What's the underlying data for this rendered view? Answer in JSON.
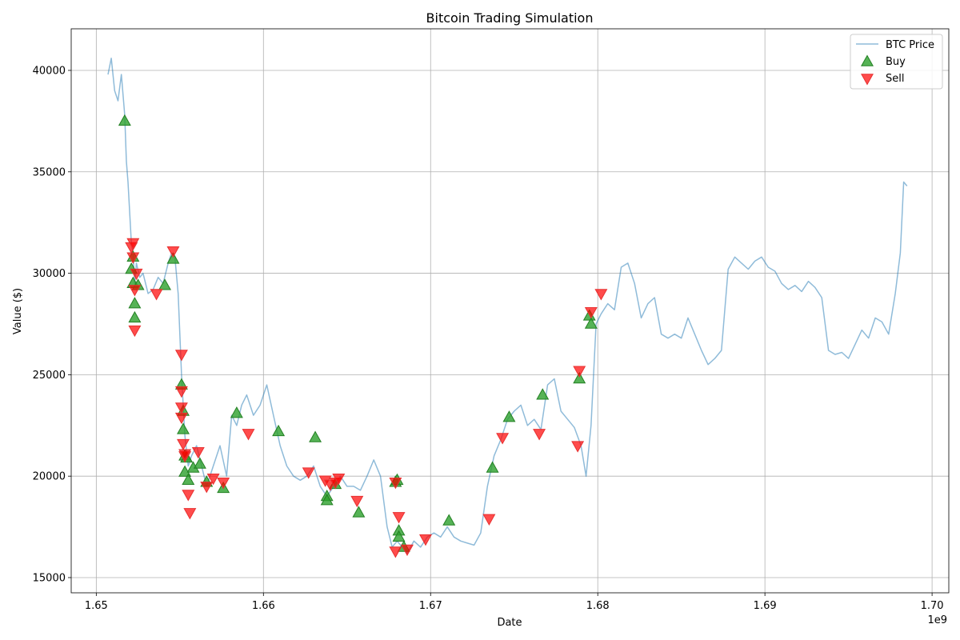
{
  "chart_data": {
    "type": "line",
    "title": "Bitcoin Trading Simulation",
    "xlabel": "Date",
    "ylabel": "Value ($)",
    "x_offset_label": "1e9",
    "xlim": [
      1.6485,
      1.701
    ],
    "ylim": [
      14250,
      42050
    ],
    "x_ticks": [
      1.65,
      1.66,
      1.67,
      1.68,
      1.69,
      1.7
    ],
    "x_tick_labels": [
      "1.65",
      "1.66",
      "1.67",
      "1.68",
      "1.69",
      "1.70"
    ],
    "y_ticks": [
      15000,
      20000,
      25000,
      30000,
      35000,
      40000
    ],
    "y_tick_labels": [
      "15000",
      "20000",
      "25000",
      "30000",
      "35000",
      "40000"
    ],
    "grid": true,
    "legend_position": "top-right",
    "colors": {
      "price": "#1f77b4",
      "buy": "#2ca02c",
      "sell": "#ff0000"
    },
    "series": [
      {
        "name": "BTC Price",
        "kind": "line",
        "x": [
          1.6507,
          1.6509,
          1.6511,
          1.6513,
          1.6515,
          1.6517,
          1.6518,
          1.6519,
          1.652,
          1.6521,
          1.6522,
          1.6523,
          1.6524,
          1.6526,
          1.6528,
          1.6531,
          1.6534,
          1.6537,
          1.654,
          1.6543,
          1.6545,
          1.6547,
          1.6549,
          1.6551,
          1.6553,
          1.6555,
          1.6557,
          1.656,
          1.6563,
          1.6566,
          1.657,
          1.6574,
          1.6578,
          1.6581,
          1.6584,
          1.6587,
          1.659,
          1.6594,
          1.6598,
          1.6602,
          1.6606,
          1.661,
          1.6614,
          1.6618,
          1.6622,
          1.6626,
          1.663,
          1.6634,
          1.6638,
          1.6642,
          1.6646,
          1.665,
          1.6654,
          1.6658,
          1.6662,
          1.6666,
          1.667,
          1.6674,
          1.6677,
          1.668,
          1.6683,
          1.6686,
          1.669,
          1.6694,
          1.6698,
          1.6702,
          1.6706,
          1.671,
          1.6714,
          1.6718,
          1.6722,
          1.6726,
          1.673,
          1.6734,
          1.6738,
          1.6742,
          1.6746,
          1.675,
          1.6754,
          1.6758,
          1.6762,
          1.6766,
          1.677,
          1.6774,
          1.6778,
          1.6782,
          1.6786,
          1.679,
          1.6793,
          1.6796,
          1.6799,
          1.6802,
          1.6806,
          1.681,
          1.6814,
          1.6818,
          1.6822,
          1.6826,
          1.683,
          1.6834,
          1.6838,
          1.6842,
          1.6846,
          1.685,
          1.6854,
          1.6858,
          1.6862,
          1.6866,
          1.687,
          1.6874,
          1.6878,
          1.6882,
          1.6886,
          1.689,
          1.6894,
          1.6898,
          1.6902,
          1.6906,
          1.691,
          1.6914,
          1.6918,
          1.6922,
          1.6926,
          1.693,
          1.6934,
          1.6938,
          1.6942,
          1.6946,
          1.695,
          1.6954,
          1.6958,
          1.6962,
          1.6966,
          1.697,
          1.6974,
          1.6978,
          1.6981,
          1.6983,
          1.6985
        ],
        "values": [
          39800,
          40600,
          39000,
          38500,
          39800,
          37800,
          35500,
          34500,
          33000,
          31500,
          31000,
          29500,
          30500,
          29800,
          30000,
          29000,
          29200,
          29800,
          29500,
          30500,
          31000,
          30800,
          29000,
          25000,
          22000,
          20500,
          21000,
          21500,
          20500,
          19500,
          20500,
          21500,
          20000,
          23000,
          22500,
          23500,
          24000,
          23000,
          23500,
          24500,
          23000,
          21500,
          20500,
          20000,
          19800,
          20000,
          20500,
          19500,
          19000,
          19500,
          20000,
          19500,
          19500,
          19300,
          20000,
          20800,
          20000,
          17500,
          16500,
          16800,
          16500,
          16200,
          16800,
          16500,
          17000,
          17200,
          17000,
          17500,
          17000,
          16800,
          16700,
          16600,
          17200,
          19500,
          21000,
          21800,
          22800,
          23200,
          23500,
          22500,
          22800,
          22300,
          24500,
          24800,
          23200,
          22800,
          22400,
          21500,
          20000,
          22500,
          27500,
          28000,
          28500,
          28200,
          30300,
          30500,
          29500,
          27800,
          28500,
          28800,
          27000,
          26800,
          27000,
          26800,
          27800,
          27000,
          26200,
          25500,
          25800,
          26200,
          30200,
          30800,
          30500,
          30200,
          30600,
          30800,
          30300,
          30100,
          29500,
          29200,
          29400,
          29100,
          29600,
          29300,
          28800,
          26200,
          26000,
          26100,
          25800,
          26500,
          27200,
          26800,
          27800,
          27600,
          27000,
          29000,
          31000,
          34500,
          34300
        ]
      },
      {
        "name": "Buy",
        "kind": "marker",
        "marker": "triangle-up",
        "x": [
          1.6517,
          1.6521,
          1.6522,
          1.6522,
          1.6523,
          1.6523,
          1.6525,
          1.6541,
          1.6546,
          1.6551,
          1.6552,
          1.6552,
          1.6553,
          1.6553,
          1.6554,
          1.6555,
          1.6558,
          1.6562,
          1.6566,
          1.6576,
          1.6584,
          1.6609,
          1.6631,
          1.6638,
          1.6638,
          1.6643,
          1.6657,
          1.6679,
          1.668,
          1.6681,
          1.6681,
          1.6684,
          1.6711,
          1.6737,
          1.6747,
          1.6767,
          1.6789,
          1.6795,
          1.6796
        ],
        "values": [
          37500,
          30200,
          30800,
          29500,
          28500,
          27800,
          29400,
          29400,
          30700,
          24500,
          23200,
          22300,
          21000,
          20200,
          20900,
          19800,
          20400,
          20600,
          19700,
          19400,
          23100,
          22200,
          21900,
          19000,
          18800,
          19600,
          18200,
          19700,
          19800,
          17300,
          17000,
          16500,
          17800,
          20400,
          22900,
          24000,
          24800,
          27900,
          27500
        ]
      },
      {
        "name": "Sell",
        "kind": "marker",
        "marker": "triangle-down",
        "x": [
          1.6521,
          1.6522,
          1.6522,
          1.6523,
          1.6523,
          1.6524,
          1.6536,
          1.6546,
          1.6551,
          1.6551,
          1.6551,
          1.6551,
          1.6552,
          1.6553,
          1.6553,
          1.6555,
          1.6556,
          1.6561,
          1.6566,
          1.657,
          1.6576,
          1.6591,
          1.6627,
          1.6637,
          1.664,
          1.6643,
          1.6645,
          1.6656,
          1.6679,
          1.6679,
          1.6681,
          1.6686,
          1.6697,
          1.6735,
          1.6743,
          1.6765,
          1.6788,
          1.6789,
          1.6796,
          1.6802
        ],
        "values": [
          31300,
          30800,
          31500,
          29200,
          27200,
          30000,
          29000,
          31100,
          26000,
          24200,
          23400,
          22900,
          21600,
          21000,
          21100,
          19100,
          18200,
          21200,
          19500,
          19900,
          19700,
          22100,
          20200,
          19800,
          19600,
          19700,
          19900,
          18800,
          19700,
          16300,
          18000,
          16400,
          16900,
          17900,
          21900,
          22100,
          21500,
          25200,
          28100,
          29000
        ]
      }
    ]
  }
}
